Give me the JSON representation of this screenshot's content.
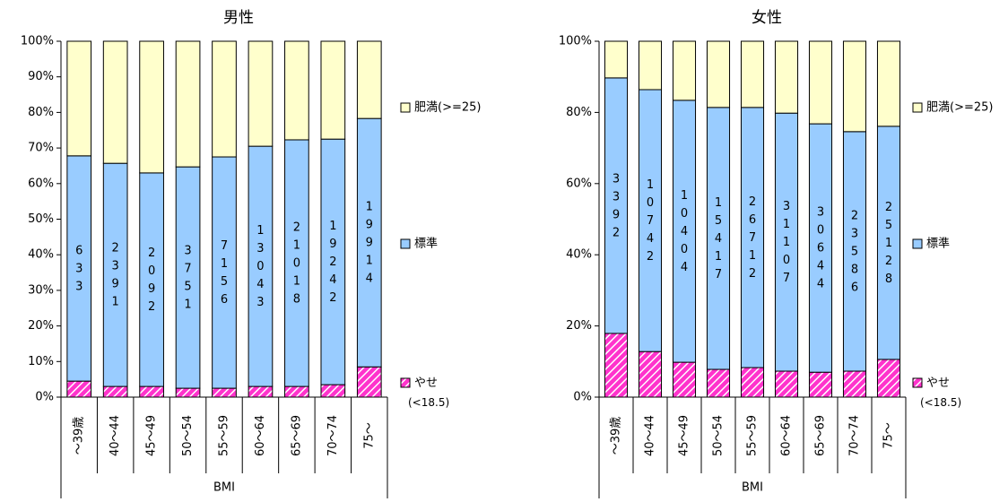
{
  "chart_data": [
    {
      "type": "stacked_bar",
      "title": "男性",
      "xlabel": "BMI",
      "categories": [
        "～39歳",
        "40～44",
        "45～49",
        "50～54",
        "55～59",
        "60～64",
        "65～69",
        "70～74",
        "75～"
      ],
      "series": [
        {
          "name": "やせ(<18.5)",
          "color": "#ff33cc",
          "hatch": true,
          "values": [
            4.5,
            3,
            3,
            2.5,
            2.5,
            3,
            3,
            3.5,
            8.5
          ]
        },
        {
          "name": "標準",
          "color": "#99ccff",
          "values": [
            63.3,
            62.7,
            60,
            62.2,
            65,
            67.5,
            69.3,
            69,
            69.8
          ],
          "bar_labels": [
            "633",
            "2391",
            "2092",
            "3751",
            "7156",
            "13043",
            "21018",
            "19242",
            "19914"
          ]
        },
        {
          "name": "肥満(>=25)",
          "color": "#ffffcc",
          "values": [
            32.2,
            34.3,
            37,
            35.3,
            32.5,
            29.5,
            27.7,
            27.5,
            21.7
          ]
        }
      ],
      "ylim": [
        0,
        100
      ],
      "yticks": [
        {
          "value": 0,
          "label": "0%"
        },
        {
          "value": 10,
          "label": "10%"
        },
        {
          "value": 20,
          "label": "20%"
        },
        {
          "value": 30,
          "label": "30%"
        },
        {
          "value": 40,
          "label": "40%"
        },
        {
          "value": 50,
          "label": "50%"
        },
        {
          "value": 60,
          "label": "60%"
        },
        {
          "value": 70,
          "label": "70%"
        },
        {
          "value": 80,
          "label": "80%"
        },
        {
          "value": 90,
          "label": "90%"
        },
        {
          "value": 100,
          "label": "100%"
        }
      ]
    },
    {
      "type": "stacked_bar",
      "title": "女性",
      "xlabel": "BMI",
      "categories": [
        "～39歳",
        "40～44",
        "45～49",
        "50～54",
        "55～59",
        "60～64",
        "65～69",
        "70～74",
        "75～"
      ],
      "series": [
        {
          "name": "やせ(<18.5)",
          "color": "#ff33cc",
          "hatch": true,
          "values": [
            17.9,
            12.8,
            9.8,
            7.8,
            8.3,
            7.3,
            7,
            7.3,
            10.6
          ]
        },
        {
          "name": "標準",
          "color": "#99ccff",
          "values": [
            71.8,
            73.6,
            73.6,
            73.6,
            73.1,
            72.5,
            69.8,
            67.3,
            65.5
          ],
          "bar_labels": [
            "3392",
            "10742",
            "10404",
            "15417",
            "26712",
            "31107",
            "30644",
            "23586",
            "25128"
          ]
        },
        {
          "name": "肥満(>=25)",
          "color": "#ffffcc",
          "values": [
            10.3,
            13.6,
            16.6,
            18.6,
            18.6,
            20.2,
            23.2,
            25.4,
            23.9
          ]
        }
      ],
      "ylim": [
        0,
        100
      ],
      "yticks": [
        {
          "value": 0,
          "label": "0%"
        },
        {
          "value": 20,
          "label": "20%"
        },
        {
          "value": 40,
          "label": "40%"
        },
        {
          "value": 60,
          "label": "60%"
        },
        {
          "value": 80,
          "label": "80%"
        },
        {
          "value": 100,
          "label": "100%"
        }
      ]
    }
  ]
}
